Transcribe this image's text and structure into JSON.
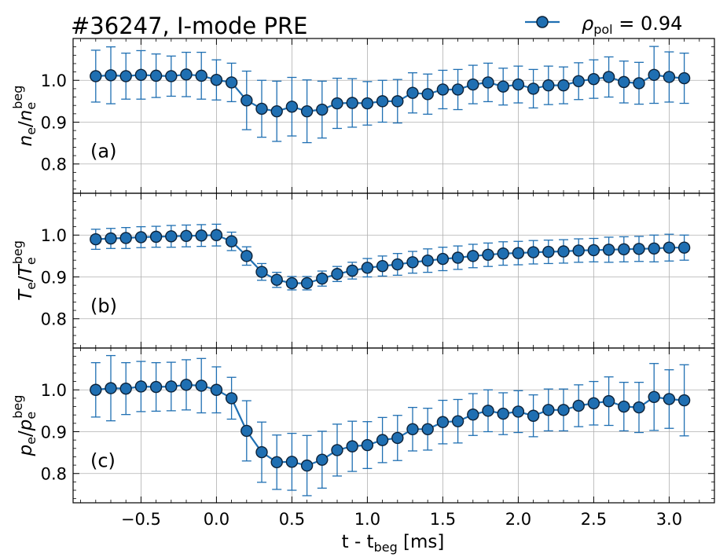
{
  "title": "#36247, I-mode PRE",
  "legend": {
    "symbol": "ρ",
    "subscript": "pol",
    "suffix": " = 0.94",
    "placement": "top-right"
  },
  "colors": {
    "line": "#1f6fb2",
    "marker_fill": "#1f6fb2",
    "marker_edge": "#0d2238",
    "grid": "#b0b0b0",
    "axis": "#000000"
  },
  "chart_data": [
    {
      "type": "line",
      "panel_label": "(a)",
      "ylabel": {
        "main": "n",
        "main_sub": "e",
        "den": "n",
        "den_sub": "e",
        "den_sup": "beg"
      },
      "xlim": [
        -0.95,
        3.3
      ],
      "ylim": [
        0.73,
        1.1
      ],
      "yticks": [
        0.8,
        0.9,
        1.0
      ],
      "ytick_labels": [
        "0.8",
        "0.9",
        "1.0"
      ],
      "series": [
        {
          "name": "ρpol = 0.94",
          "x": [
            -0.8,
            -0.7,
            -0.6,
            -0.5,
            -0.4,
            -0.3,
            -0.2,
            -0.1,
            0.0,
            0.1,
            0.2,
            0.3,
            0.4,
            0.5,
            0.6,
            0.7,
            0.8,
            0.9,
            1.0,
            1.1,
            1.2,
            1.3,
            1.4,
            1.5,
            1.6,
            1.7,
            1.8,
            1.9,
            2.0,
            2.1,
            2.2,
            2.3,
            2.4,
            2.5,
            2.6,
            2.7,
            2.8,
            2.9,
            3.0,
            3.1
          ],
          "y": [
            1.01,
            1.012,
            1.01,
            1.013,
            1.011,
            1.01,
            1.014,
            1.011,
            1.001,
            0.995,
            0.952,
            0.932,
            0.926,
            0.937,
            0.926,
            0.93,
            0.945,
            0.946,
            0.945,
            0.95,
            0.95,
            0.97,
            0.967,
            0.978,
            0.978,
            0.99,
            0.995,
            0.985,
            0.99,
            0.98,
            0.988,
            0.988,
            0.998,
            1.003,
            1.008,
            0.996,
            0.993,
            1.013,
            1.008,
            1.005
          ],
          "err": [
            0.062,
            0.068,
            0.055,
            0.058,
            0.052,
            0.048,
            0.053,
            0.056,
            0.048,
            0.046,
            0.07,
            0.068,
            0.072,
            0.07,
            0.075,
            0.068,
            0.06,
            0.058,
            0.052,
            0.05,
            0.052,
            0.048,
            0.048,
            0.046,
            0.048,
            0.046,
            0.046,
            0.044,
            0.044,
            0.046,
            0.046,
            0.044,
            0.044,
            0.046,
            0.048,
            0.05,
            0.05,
            0.068,
            0.06,
            0.06
          ]
        }
      ]
    },
    {
      "type": "line",
      "panel_label": "(b)",
      "ylabel": {
        "main": "T",
        "main_sub": "e",
        "den": "T",
        "den_sub": "e",
        "den_sup": "beg"
      },
      "xlim": [
        -0.95,
        3.3
      ],
      "ylim": [
        0.73,
        1.1
      ],
      "yticks": [
        0.8,
        0.9,
        1.0
      ],
      "ytick_labels": [
        "0.8",
        "0.9",
        "1.0"
      ],
      "series": [
        {
          "name": "ρpol = 0.94",
          "x": [
            -0.8,
            -0.7,
            -0.6,
            -0.5,
            -0.4,
            -0.3,
            -0.2,
            -0.1,
            0.0,
            0.1,
            0.2,
            0.3,
            0.4,
            0.5,
            0.6,
            0.7,
            0.8,
            0.9,
            1.0,
            1.1,
            1.2,
            1.3,
            1.4,
            1.5,
            1.6,
            1.7,
            1.8,
            1.9,
            2.0,
            2.1,
            2.2,
            2.3,
            2.4,
            2.5,
            2.6,
            2.7,
            2.8,
            2.9,
            3.0,
            3.1
          ],
          "y": [
            0.99,
            0.992,
            0.993,
            0.995,
            0.996,
            0.997,
            0.998,
            0.999,
            1.0,
            0.985,
            0.95,
            0.912,
            0.893,
            0.885,
            0.885,
            0.896,
            0.907,
            0.915,
            0.922,
            0.926,
            0.93,
            0.935,
            0.939,
            0.943,
            0.946,
            0.95,
            0.953,
            0.956,
            0.957,
            0.959,
            0.96,
            0.961,
            0.963,
            0.964,
            0.965,
            0.966,
            0.967,
            0.968,
            0.97,
            0.97
          ],
          "err": [
            0.024,
            0.024,
            0.025,
            0.025,
            0.025,
            0.026,
            0.026,
            0.026,
            0.026,
            0.022,
            0.022,
            0.02,
            0.018,
            0.016,
            0.016,
            0.018,
            0.018,
            0.02,
            0.022,
            0.024,
            0.026,
            0.026,
            0.028,
            0.028,
            0.028,
            0.028,
            0.028,
            0.028,
            0.028,
            0.028,
            0.028,
            0.028,
            0.028,
            0.028,
            0.03,
            0.03,
            0.03,
            0.032,
            0.032,
            0.03
          ]
        }
      ]
    },
    {
      "type": "line",
      "panel_label": "(c)",
      "ylabel": {
        "main": "p",
        "main_sub": "e",
        "den": "p",
        "den_sub": "e",
        "den_sup": "beg"
      },
      "xlim": [
        -0.95,
        3.3
      ],
      "ylim": [
        0.73,
        1.1
      ],
      "yticks": [
        0.8,
        0.9,
        1.0
      ],
      "ytick_labels": [
        "0.8",
        "0.9",
        "1.0"
      ],
      "xticks": [
        -0.5,
        0.0,
        0.5,
        1.0,
        1.5,
        2.0,
        2.5,
        3.0
      ],
      "xtick_labels": [
        "−0.5",
        "0.0",
        "0.5",
        "1.0",
        "1.5",
        "2.0",
        "2.5",
        "3.0"
      ],
      "xlabel": {
        "main": "t - t",
        "sub": "beg",
        "suffix": " [ms]"
      },
      "series": [
        {
          "name": "ρpol = 0.94",
          "x": [
            -0.8,
            -0.7,
            -0.6,
            -0.5,
            -0.4,
            -0.3,
            -0.2,
            -0.1,
            0.0,
            0.1,
            0.2,
            0.3,
            0.4,
            0.5,
            0.6,
            0.7,
            0.8,
            0.9,
            1.0,
            1.1,
            1.2,
            1.3,
            1.4,
            1.5,
            1.6,
            1.7,
            1.8,
            1.9,
            2.0,
            2.1,
            2.2,
            2.3,
            2.4,
            2.5,
            2.6,
            2.7,
            2.8,
            2.9,
            3.0,
            3.1
          ],
          "y": [
            1.0,
            1.004,
            1.003,
            1.008,
            1.007,
            1.008,
            1.012,
            1.01,
            1.0,
            0.98,
            0.902,
            0.851,
            0.827,
            0.828,
            0.819,
            0.833,
            0.856,
            0.865,
            0.868,
            0.88,
            0.885,
            0.906,
            0.906,
            0.923,
            0.925,
            0.941,
            0.95,
            0.943,
            0.948,
            0.938,
            0.952,
            0.952,
            0.962,
            0.968,
            0.973,
            0.96,
            0.958,
            0.983,
            0.978,
            0.975
          ],
          "err": [
            0.065,
            0.078,
            0.062,
            0.06,
            0.058,
            0.058,
            0.06,
            0.065,
            0.055,
            0.05,
            0.072,
            0.072,
            0.065,
            0.068,
            0.072,
            0.068,
            0.062,
            0.06,
            0.056,
            0.054,
            0.054,
            0.052,
            0.05,
            0.052,
            0.052,
            0.05,
            0.05,
            0.05,
            0.05,
            0.05,
            0.05,
            0.05,
            0.05,
            0.052,
            0.058,
            0.058,
            0.06,
            0.08,
            0.07,
            0.085
          ]
        }
      ]
    }
  ]
}
